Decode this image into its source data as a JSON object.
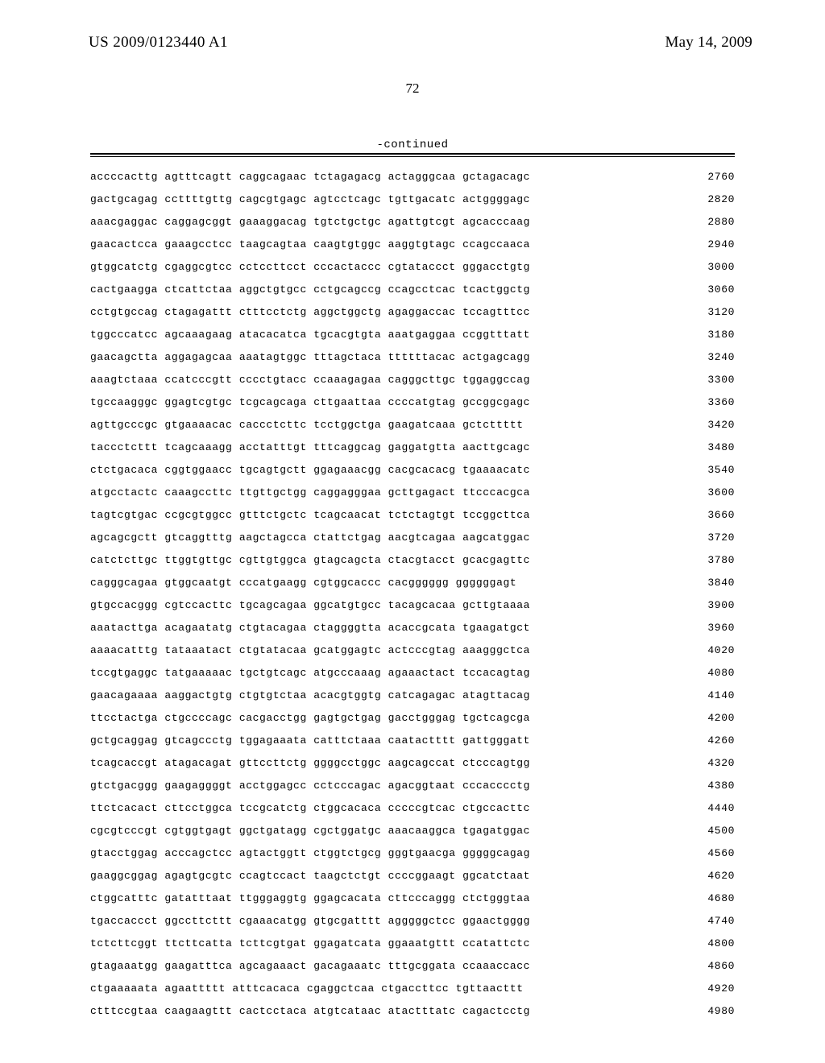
{
  "header": {
    "left": "US 2009/0123440 A1",
    "right": "May 14, 2009",
    "page_number": "72",
    "continued": "-continued"
  },
  "sequence": {
    "start": 2760,
    "step": 60,
    "rows": [
      "accccacttg agtttcagtt caggcagaac tctagagacg actagggcaa gctagacagc",
      "gactgcagag ccttttgttg cagcgtgagc agtcctcagc tgttgacatc actggggagc",
      "aaacgaggac caggagcggt gaaaggacag tgtctgctgc agattgtcgt agcacccaag",
      "gaacactcca gaaagcctcc taagcagtaa caagtgtggc aaggtgtagc ccagccaaca",
      "gtggcatctg cgaggcgtcc cctccttcct cccactaccc cgtataccct gggacctgtg",
      "cactgaagga ctcattctaa aggctgtgcc cctgcagccg ccagcctcac tcactggctg",
      "cctgtgccag ctagagattt ctttcctctg aggctggctg agaggaccac tccagtttcc",
      "tggcccatcc agcaaagaag atacacatca tgcacgtgta aaatgaggaa ccggtttatt",
      "gaacagctta aggagagcaa aaatagtggc tttagctaca ttttttacac actgagcagg",
      "aaagtctaaa ccatcccgtt cccctgtacc ccaaagagaa cagggcttgc tggaggccag",
      "tgccaagggc ggagtcgtgc tcgcagcaga cttgaattaa ccccatgtag gccggcgagc",
      "agttgcccgc gtgaaaacac caccctcttc tcctggctga gaagatcaaa gctcttttt",
      "taccctcttt tcagcaaagg acctatttgt tttcaggcag gaggatgtta aacttgcagc",
      "ctctgacaca cggtggaacc tgcagtgctt ggagaaacgg cacgcacacg tgaaaacatc",
      "atgcctactc caaagccttc ttgttgctgg caggagggaa gcttgagact ttcccacgca",
      "tagtcgtgac ccgcgtggcc gtttctgctc tcagcaacat tctctagtgt tccggcttca",
      "agcagcgctt gtcaggtttg aagctagcca ctattctgag aacgtcagaa aagcatggac",
      "catctcttgc ttggtgttgc cgttgtggca gtagcagcta ctacgtacct gcacgagttc",
      "cagggcagaa gtggcaatgt cccatgaagg cgtggcaccc cacgggggg ggggggagt",
      "gtgccacggg cgtccacttc tgcagcagaa ggcatgtgcc tacagcacaa gcttgtaaaa",
      "aaatacttga acagaatatg ctgtacagaa ctaggggtta acaccgcata tgaagatgct",
      "aaaacatttg tataaatact ctgtatacaa gcatggagtc actcccgtag aaagggctca",
      "tccgtgaggc tatgaaaaac tgctgtcagc atgcccaaag agaaactact tccacagtag",
      "gaacagaaaa aaggactgtg ctgtgtctaa acacgtggtg catcagagac atagttacag",
      "ttcctactga ctgccccagc cacgacctgg gagtgctgag gacctgggag tgctcagcga",
      "gctgcaggag gtcagccctg tggagaaata catttctaaa caatactttt gattgggatt",
      "tcagcaccgt atagacagat gttccttctg ggggcctggc aagcagccat ctcccagtgg",
      "gtctgacggg gaagaggggt acctggagcc cctcccagac agacggtaat cccacccctg",
      "ttctcacact cttcctggca tccgcatctg ctggcacaca cccccgtcac ctgccacttc",
      "cgcgtcccgt cgtggtgagt ggctgatagg cgctggatgc aaacaaggca tgagatggac",
      "gtacctggag acccagctcc agtactggtt ctggtctgcg gggtgaacga gggggcagag",
      "gaaggcggag agagtgcgtc ccagtccact taagctctgt ccccggaagt ggcatctaat",
      "ctggcatttc gatatttaat ttgggaggtg ggagcacata cttcccaggg ctctgggtaa",
      "tgaccaccct ggccttcttt cgaaacatgg gtgcgatttt agggggctcc ggaactgggg",
      "tctcttcggt ttcttcatta tcttcgtgat ggagatcata ggaaatgttt ccatattctc",
      "gtagaaatgg gaagatttca agcagaaact gacagaaatc tttgcggata ccaaaccacc",
      "ctgaaaaata agaattttt atttcacaca cgaggctcaa ctgaccttcc tgttaacttt",
      "ctttccgtaa caagaagttt cactcctaca atgtcataac atactttatc cagactcctg"
    ]
  }
}
